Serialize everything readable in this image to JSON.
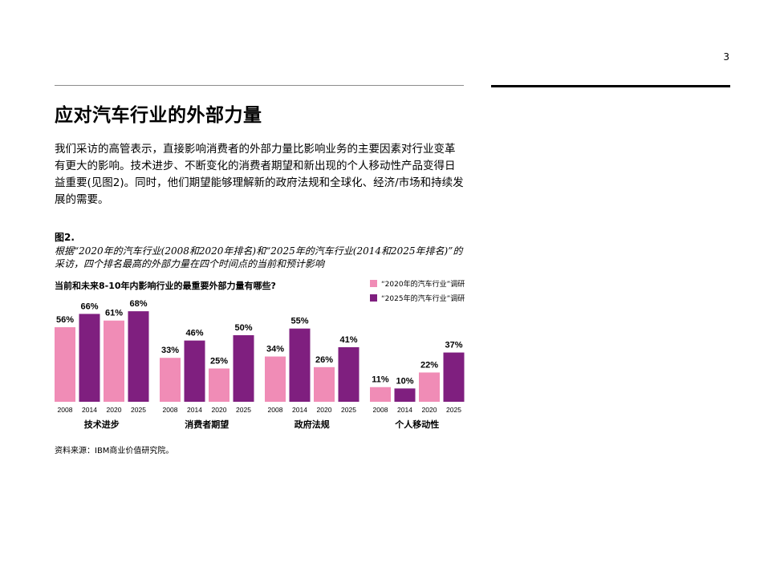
{
  "page_number": "3",
  "title": "应对汽车行业的外部力量",
  "body": "我们采访的高管表示，直接影响消费者的外部力量比影响业务的主要因素对行业变革有更大的影响。技术进步、不断变化的消费者期望和新出现的个人移动性产品变得日益重要(见图2)。同时，他们期望能够理解新的政府法规和全球化、经济/市场和持续发展的需要。",
  "figure": {
    "label": "图2.",
    "caption": "根据“2020年的汽车行业(2008和2020年排名)和“2025年的汽车行业(2014和2025年排名)”的采访，四个排名最高的外部力量在四个时间点的当前和预计影响"
  },
  "source": "资料来源：IBM商业价值研究院。",
  "colors": {
    "pink": "#f08cb6",
    "purple": "#7f1f7f"
  },
  "chart_data": {
    "type": "bar",
    "title": "当前和未来8-10年内影响行业的最重要外部力量有哪些?",
    "groups": [
      "技术进步",
      "消费者期望",
      "政府法规",
      "个人移动性"
    ],
    "x": [
      "2008",
      "2014",
      "2020",
      "2025"
    ],
    "values": [
      [
        56,
        66,
        61,
        68
      ],
      [
        33,
        46,
        25,
        50
      ],
      [
        34,
        55,
        26,
        41
      ],
      [
        11,
        10,
        22,
        37
      ]
    ],
    "value_labels": [
      [
        "56%",
        "66%",
        "61%",
        "68%"
      ],
      [
        "33%",
        "46%",
        "25%",
        "50%"
      ],
      [
        "34%",
        "55%",
        "26%",
        "41%"
      ],
      [
        "11%",
        "10%",
        "22%",
        "37%"
      ]
    ],
    "series": [
      {
        "name": "“2020年的汽车行业”调研",
        "years": [
          "2008",
          "2020"
        ],
        "color": "#f08cb6"
      },
      {
        "name": "“2025年的汽车行业”调研",
        "years": [
          "2014",
          "2025"
        ],
        "color": "#7f1f7f"
      }
    ],
    "ylim": [
      0,
      100
    ],
    "legend": "top-right"
  }
}
